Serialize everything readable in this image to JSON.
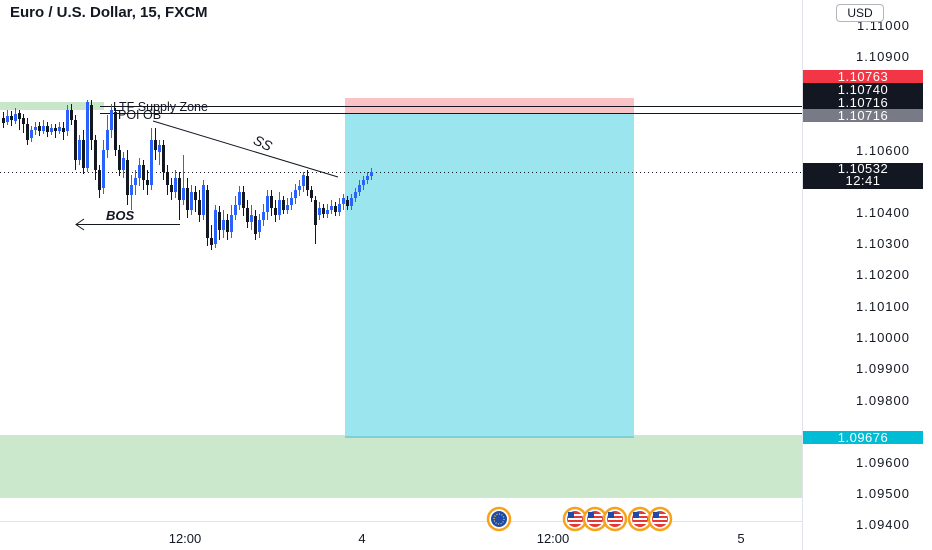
{
  "header": {
    "title": "Euro / U.S. Dollar, 15, FXCM",
    "currency": "USD"
  },
  "price_axis": {
    "labels": [
      "1.11000",
      "1.10900",
      "1.10600",
      "1.10400",
      "1.10300",
      "1.10200",
      "1.10100",
      "1.10000",
      "1.09900",
      "1.09800",
      "1.09600",
      "1.09500",
      "1.09400"
    ]
  },
  "time_axis": {
    "labels": [
      "12:00",
      "4",
      "12:00",
      "5"
    ]
  },
  "price_tags": [
    {
      "value": "1.10763",
      "color": "#f23645"
    },
    {
      "value": "1.10740",
      "color": "#131722"
    },
    {
      "value": "1.10716",
      "color": "#131722"
    },
    {
      "value": "1.10716",
      "color": "#787b86"
    },
    {
      "value": "1.09676",
      "color": "#00bcd4"
    }
  ],
  "current_price": {
    "value": "1.10532",
    "countdown": "12:41",
    "color": "#131722"
  },
  "annotations": {
    "supply_zone": "LTF Supply Zone",
    "poi": "POI OB",
    "bos": "BOS",
    "ss": "SS"
  },
  "colors": {
    "up_candle": "#2962ff",
    "down_candle": "#131722",
    "target_zone": "#9be5ee",
    "stop_zone": "#f9c3c6",
    "demand_zone": "#c8e6c9"
  },
  "chart_data": {
    "type": "candlestick",
    "symbol": "EURUSD",
    "timeframe": "15",
    "ylim": [
      1.0937,
      1.1107
    ],
    "position": {
      "side": "short",
      "entry": 1.10716,
      "stop": 1.10763,
      "target": 1.09676
    }
  }
}
